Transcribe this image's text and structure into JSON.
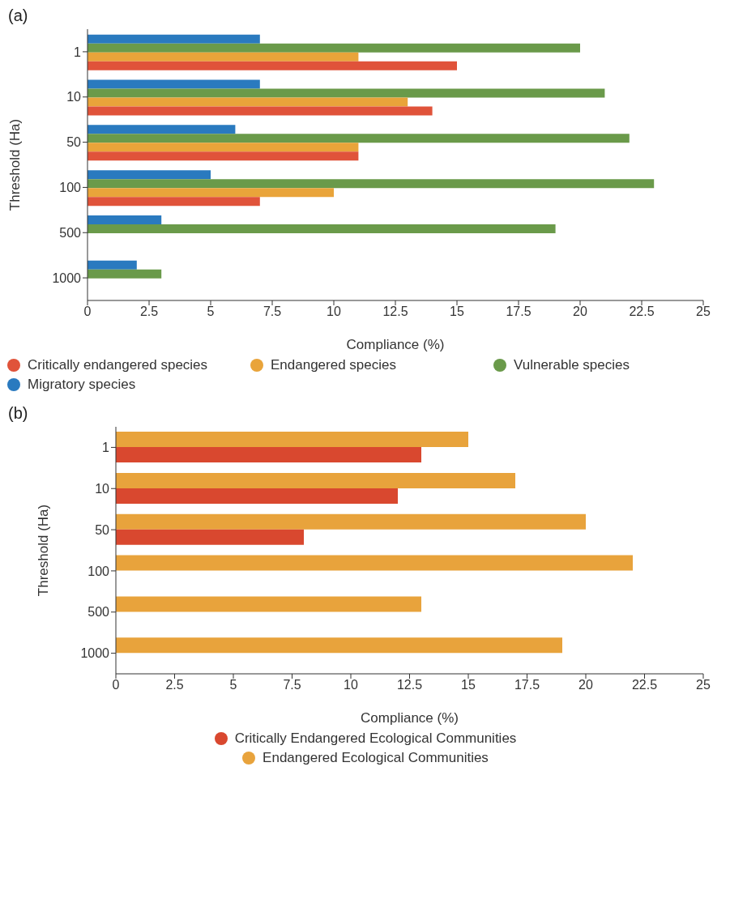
{
  "chart_data": [
    {
      "type": "bar",
      "orientation": "horizontal",
      "title": "(a)",
      "xlabel": "Compliance (%)",
      "ylabel": "Threshold (Ha)",
      "categories": [
        "1",
        "10",
        "50",
        "100",
        "500",
        "1000"
      ],
      "xlim": [
        0,
        25
      ],
      "xticks": [
        0,
        2.5,
        5,
        7.5,
        10,
        12.5,
        15,
        17.5,
        20,
        22.5,
        25
      ],
      "grid": false,
      "legend": "bottom",
      "series": [
        {
          "name": "Critically endangered species",
          "color": "#e0533a",
          "values": [
            15,
            14,
            11,
            7,
            null,
            null
          ]
        },
        {
          "name": "Endangered species",
          "color": "#e9a43a",
          "values": [
            11,
            13,
            11,
            10,
            null,
            null
          ]
        },
        {
          "name": "Vulnerable species",
          "color": "#6a9a4a",
          "values": [
            20,
            21,
            22,
            23,
            19,
            3
          ]
        },
        {
          "name": "Migratory species",
          "color": "#2a7abf",
          "values": [
            7,
            7,
            6,
            5,
            3,
            2
          ]
        }
      ]
    },
    {
      "type": "bar",
      "orientation": "horizontal",
      "title": "(b)",
      "xlabel": "Compliance (%)",
      "ylabel": "Threshold (Ha)",
      "categories": [
        "1",
        "10",
        "50",
        "100",
        "500",
        "1000"
      ],
      "xlim": [
        0,
        25
      ],
      "xticks": [
        0,
        2.5,
        5,
        7.5,
        10,
        12.5,
        15,
        17.5,
        20,
        22.5,
        25
      ],
      "grid": false,
      "legend": "bottom",
      "series": [
        {
          "name": "Critically Endangered Ecological Communities",
          "color": "#d9482f",
          "values": [
            13,
            12,
            8,
            null,
            null,
            null
          ]
        },
        {
          "name": "Endangered Ecological Communities",
          "color": "#e8a33c",
          "values": [
            15,
            17,
            20,
            22,
            13,
            19
          ]
        }
      ]
    }
  ]
}
